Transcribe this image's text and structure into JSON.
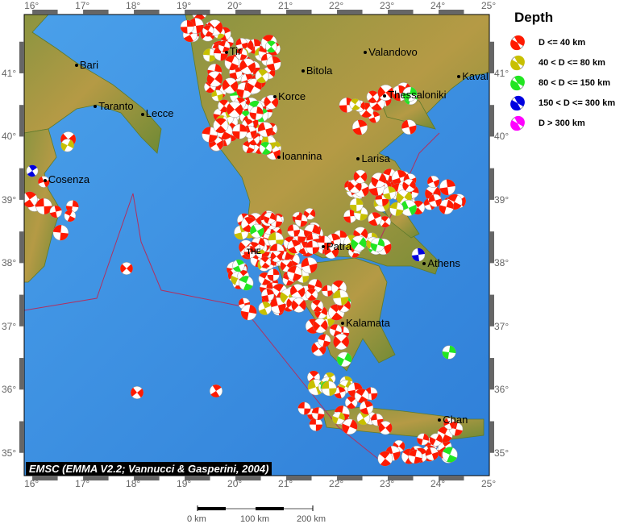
{
  "map": {
    "lon_range": [
      15.84,
      25.0
    ],
    "lat_range": [
      34.64,
      41.93
    ],
    "lon_ticks": [
      "16°",
      "17°",
      "18°",
      "19°",
      "20°",
      "21°",
      "22°",
      "23°",
      "24°",
      "25°"
    ],
    "lat_ticks": [
      "35°",
      "36°",
      "37°",
      "38°",
      "39°",
      "40°",
      "41°"
    ],
    "sea_color": "#3a8fe0",
    "land_color": "#7a8a3a",
    "credit": "EMSC (EMMA V2.2; Vannucci & Gasperini, 2004)"
  },
  "cities": [
    {
      "name": "Bari",
      "lon": 16.87,
      "lat": 41.12
    },
    {
      "name": "Taranto",
      "lon": 17.24,
      "lat": 40.47
    },
    {
      "name": "Lecce",
      "lon": 18.17,
      "lat": 40.35
    },
    {
      "name": "Cosenza",
      "lon": 16.25,
      "lat": 39.3
    },
    {
      "name": "Tir",
      "lon": 19.82,
      "lat": 41.33
    },
    {
      "name": "Bitola",
      "lon": 21.33,
      "lat": 41.03
    },
    {
      "name": "Valandovo",
      "lon": 22.56,
      "lat": 41.32
    },
    {
      "name": "Kaval",
      "lon": 24.4,
      "lat": 40.94
    },
    {
      "name": "Korce",
      "lon": 20.78,
      "lat": 40.62
    },
    {
      "name": "Thessaloniki",
      "lon": 22.94,
      "lat": 40.64
    },
    {
      "name": "Ioannina",
      "lon": 20.85,
      "lat": 39.67
    },
    {
      "name": "Larisa",
      "lon": 22.42,
      "lat": 39.64
    },
    {
      "name": "THE",
      "lon": 20.25,
      "lat": 38.13
    },
    {
      "name": "Patra",
      "lon": 21.73,
      "lat": 38.25
    },
    {
      "name": "Athens",
      "lon": 23.72,
      "lat": 37.98
    },
    {
      "name": "Kalamata",
      "lon": 22.11,
      "lat": 37.04
    },
    {
      "name": "Chan",
      "lon": 24.02,
      "lat": 35.51
    }
  ],
  "legend": {
    "title": "Depth",
    "items": [
      {
        "label": "D <= 40 km",
        "color": "#ff1a00"
      },
      {
        "label": "40 < D <= 80 km",
        "color": "#c8c000"
      },
      {
        "label": "80 < D <= 150 km",
        "color": "#22e622"
      },
      {
        "label": "150 < D <= 300 km",
        "color": "#0000e0"
      },
      {
        "label": "D > 300 km",
        "color": "#ff00ff"
      }
    ]
  },
  "scale_bar": {
    "labels": [
      "0 km",
      "100 km",
      "200 km"
    ]
  }
}
